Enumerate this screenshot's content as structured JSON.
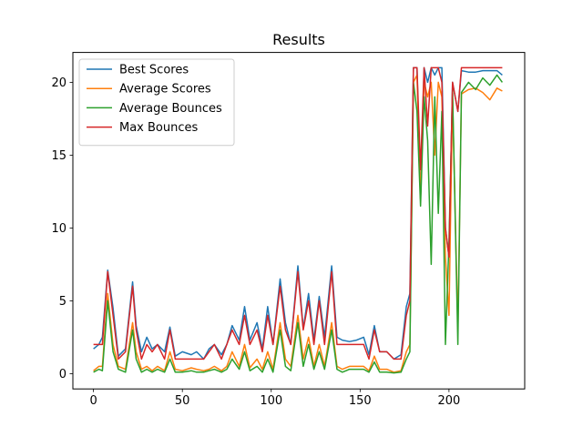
{
  "chart_data": {
    "type": "line",
    "title": "Results",
    "xlabel": "",
    "ylabel": "",
    "xlim": [
      -11.6,
      242.6
    ],
    "ylim": [
      -1.05,
      22.05
    ],
    "x_ticks": [
      0,
      50,
      100,
      150,
      200
    ],
    "y_ticks": [
      0,
      5,
      10,
      15,
      20
    ],
    "grid": false,
    "legend_position": "upper-left",
    "series": [
      {
        "name": "Best Scores",
        "color": "#1f77b4",
        "points": [
          [
            0,
            1.7
          ],
          [
            3,
            2
          ],
          [
            5,
            2.5
          ],
          [
            8,
            7.1
          ],
          [
            11,
            4.5
          ],
          [
            14,
            1.2
          ],
          [
            18,
            1.7
          ],
          [
            22,
            6.3
          ],
          [
            24,
            3.3
          ],
          [
            27,
            1.5
          ],
          [
            30,
            2.5
          ],
          [
            33,
            1.7
          ],
          [
            36,
            2
          ],
          [
            40,
            1.5
          ],
          [
            43,
            3.2
          ],
          [
            46,
            1.2
          ],
          [
            50,
            1.5
          ],
          [
            55,
            1.3
          ],
          [
            58,
            1.5
          ],
          [
            62,
            1
          ],
          [
            65,
            1.7
          ],
          [
            68,
            2
          ],
          [
            72,
            1.3
          ],
          [
            75,
            2
          ],
          [
            78,
            3.3
          ],
          [
            82,
            2.3
          ],
          [
            85,
            4.6
          ],
          [
            88,
            2.3
          ],
          [
            92,
            3.5
          ],
          [
            95,
            1.7
          ],
          [
            98,
            4.6
          ],
          [
            101,
            2
          ],
          [
            105,
            6.5
          ],
          [
            108,
            3.5
          ],
          [
            111,
            2
          ],
          [
            115,
            7.4
          ],
          [
            118,
            3.1
          ],
          [
            121,
            5.5
          ],
          [
            124,
            2.3
          ],
          [
            127,
            5.3
          ],
          [
            130,
            2.5
          ],
          [
            134,
            7.4
          ],
          [
            137,
            2.5
          ],
          [
            140,
            2.3
          ],
          [
            144,
            2.2
          ],
          [
            148,
            2.3
          ],
          [
            152,
            2.5
          ],
          [
            155,
            1.3
          ],
          [
            158,
            3.3
          ],
          [
            161,
            1.5
          ],
          [
            165,
            1.5
          ],
          [
            169,
            1
          ],
          [
            173,
            1.3
          ],
          [
            176,
            4.6
          ],
          [
            178,
            5.5
          ],
          [
            180,
            21
          ],
          [
            182,
            21
          ],
          [
            184,
            12
          ],
          [
            186,
            21
          ],
          [
            188,
            20
          ],
          [
            190,
            21
          ],
          [
            192,
            20.5
          ],
          [
            194,
            21
          ],
          [
            196,
            21
          ],
          [
            198,
            10
          ],
          [
            200,
            8
          ],
          [
            202,
            20
          ],
          [
            205,
            18
          ],
          [
            207,
            20.8
          ],
          [
            211,
            20.7
          ],
          [
            215,
            20.7
          ],
          [
            219,
            20.8
          ],
          [
            223,
            20.8
          ],
          [
            227,
            20.8
          ],
          [
            230,
            20.5
          ]
        ]
      },
      {
        "name": "Average Scores",
        "color": "#ff7f0e",
        "points": [
          [
            0,
            0.2
          ],
          [
            3,
            0.5
          ],
          [
            5,
            0.5
          ],
          [
            8,
            5.5
          ],
          [
            11,
            2
          ],
          [
            14,
            0.5
          ],
          [
            18,
            0.3
          ],
          [
            22,
            3.5
          ],
          [
            24,
            1.5
          ],
          [
            27,
            0.3
          ],
          [
            30,
            0.5
          ],
          [
            33,
            0.2
          ],
          [
            36,
            0.5
          ],
          [
            40,
            0.2
          ],
          [
            43,
            1.5
          ],
          [
            46,
            0.3
          ],
          [
            50,
            0.2
          ],
          [
            55,
            0.4
          ],
          [
            58,
            0.3
          ],
          [
            62,
            0.2
          ],
          [
            65,
            0.3
          ],
          [
            68,
            0.5
          ],
          [
            72,
            0.2
          ],
          [
            75,
            0.5
          ],
          [
            78,
            1.5
          ],
          [
            82,
            0.5
          ],
          [
            85,
            2
          ],
          [
            88,
            0.4
          ],
          [
            92,
            1
          ],
          [
            95,
            0.3
          ],
          [
            98,
            1.5
          ],
          [
            101,
            0.3
          ],
          [
            105,
            3.5
          ],
          [
            108,
            1
          ],
          [
            111,
            0.5
          ],
          [
            115,
            4
          ],
          [
            118,
            1
          ],
          [
            121,
            2.5
          ],
          [
            124,
            0.5
          ],
          [
            127,
            2
          ],
          [
            130,
            0.5
          ],
          [
            134,
            3.5
          ],
          [
            137,
            0.5
          ],
          [
            140,
            0.3
          ],
          [
            144,
            0.5
          ],
          [
            148,
            0.5
          ],
          [
            152,
            0.5
          ],
          [
            155,
            0.2
          ],
          [
            158,
            1.2
          ],
          [
            161,
            0.3
          ],
          [
            165,
            0.3
          ],
          [
            169,
            0.1
          ],
          [
            173,
            0.2
          ],
          [
            176,
            1.5
          ],
          [
            178,
            2
          ],
          [
            180,
            20
          ],
          [
            182,
            20.5
          ],
          [
            184,
            12
          ],
          [
            186,
            20
          ],
          [
            188,
            19
          ],
          [
            190,
            20
          ],
          [
            192,
            15
          ],
          [
            194,
            20
          ],
          [
            196,
            19
          ],
          [
            198,
            8
          ],
          [
            200,
            4
          ],
          [
            202,
            19
          ],
          [
            205,
            3
          ],
          [
            207,
            19.2
          ],
          [
            211,
            19.5
          ],
          [
            215,
            19.6
          ],
          [
            219,
            19.3
          ],
          [
            223,
            18.8
          ],
          [
            227,
            19.6
          ],
          [
            230,
            19.4
          ]
        ]
      },
      {
        "name": "Average Bounces",
        "color": "#2ca02c",
        "points": [
          [
            0,
            0.1
          ],
          [
            3,
            0.3
          ],
          [
            5,
            0.2
          ],
          [
            8,
            5
          ],
          [
            11,
            1.5
          ],
          [
            14,
            0.3
          ],
          [
            18,
            0.1
          ],
          [
            22,
            3
          ],
          [
            24,
            1
          ],
          [
            27,
            0.1
          ],
          [
            30,
            0.3
          ],
          [
            33,
            0.1
          ],
          [
            36,
            0.3
          ],
          [
            40,
            0.1
          ],
          [
            43,
            1
          ],
          [
            46,
            0.1
          ],
          [
            50,
            0.1
          ],
          [
            55,
            0.2
          ],
          [
            58,
            0.1
          ],
          [
            62,
            0.1
          ],
          [
            65,
            0.2
          ],
          [
            68,
            0.3
          ],
          [
            72,
            0.1
          ],
          [
            75,
            0.3
          ],
          [
            78,
            1
          ],
          [
            82,
            0.3
          ],
          [
            85,
            1.5
          ],
          [
            88,
            0.2
          ],
          [
            92,
            0.5
          ],
          [
            95,
            0.1
          ],
          [
            98,
            1
          ],
          [
            101,
            0.1
          ],
          [
            105,
            3
          ],
          [
            108,
            0.5
          ],
          [
            111,
            0.2
          ],
          [
            115,
            3.5
          ],
          [
            118,
            0.5
          ],
          [
            121,
            2
          ],
          [
            124,
            0.3
          ],
          [
            127,
            1.5
          ],
          [
            130,
            0.3
          ],
          [
            134,
            3
          ],
          [
            137,
            0.3
          ],
          [
            140,
            0.1
          ],
          [
            144,
            0.3
          ],
          [
            148,
            0.3
          ],
          [
            152,
            0.3
          ],
          [
            155,
            0.1
          ],
          [
            158,
            0.8
          ],
          [
            161,
            0.1
          ],
          [
            165,
            0.1
          ],
          [
            169,
            0.05
          ],
          [
            173,
            0.1
          ],
          [
            176,
            1
          ],
          [
            178,
            1.5
          ],
          [
            180,
            20
          ],
          [
            182,
            18
          ],
          [
            184,
            11.5
          ],
          [
            186,
            19
          ],
          [
            188,
            16
          ],
          [
            190,
            7.5
          ],
          [
            192,
            19
          ],
          [
            194,
            11
          ],
          [
            196,
            18
          ],
          [
            198,
            2
          ],
          [
            200,
            9
          ],
          [
            202,
            19.5
          ],
          [
            205,
            2
          ],
          [
            207,
            19.3
          ],
          [
            211,
            20
          ],
          [
            215,
            19.5
          ],
          [
            219,
            20.3
          ],
          [
            223,
            19.8
          ],
          [
            227,
            20.5
          ],
          [
            230,
            20
          ]
        ]
      },
      {
        "name": "Max Bounces",
        "color": "#d62728",
        "points": [
          [
            0,
            2
          ],
          [
            3,
            2
          ],
          [
            5,
            2
          ],
          [
            8,
            7
          ],
          [
            11,
            4
          ],
          [
            14,
            1
          ],
          [
            18,
            1.5
          ],
          [
            22,
            6
          ],
          [
            24,
            3
          ],
          [
            27,
            1
          ],
          [
            30,
            2
          ],
          [
            33,
            1.5
          ],
          [
            36,
            2
          ],
          [
            40,
            1
          ],
          [
            43,
            3
          ],
          [
            46,
            1
          ],
          [
            50,
            1
          ],
          [
            55,
            1
          ],
          [
            58,
            1
          ],
          [
            62,
            1
          ],
          [
            65,
            1.5
          ],
          [
            68,
            2
          ],
          [
            72,
            1
          ],
          [
            75,
            2
          ],
          [
            78,
            3
          ],
          [
            82,
            2
          ],
          [
            85,
            4
          ],
          [
            88,
            2
          ],
          [
            92,
            3
          ],
          [
            95,
            1.5
          ],
          [
            98,
            4
          ],
          [
            101,
            2
          ],
          [
            105,
            6
          ],
          [
            108,
            3
          ],
          [
            111,
            2
          ],
          [
            115,
            7
          ],
          [
            118,
            3
          ],
          [
            121,
            5
          ],
          [
            124,
            2
          ],
          [
            127,
            5
          ],
          [
            130,
            2
          ],
          [
            134,
            7
          ],
          [
            137,
            2
          ],
          [
            140,
            2
          ],
          [
            144,
            2
          ],
          [
            148,
            2
          ],
          [
            152,
            2
          ],
          [
            155,
            1
          ],
          [
            158,
            3
          ],
          [
            161,
            1.5
          ],
          [
            165,
            1.5
          ],
          [
            169,
            1
          ],
          [
            173,
            1
          ],
          [
            176,
            4
          ],
          [
            178,
            5
          ],
          [
            180,
            21
          ],
          [
            182,
            21
          ],
          [
            184,
            14
          ],
          [
            186,
            21
          ],
          [
            188,
            17
          ],
          [
            190,
            21
          ],
          [
            192,
            21
          ],
          [
            194,
            21
          ],
          [
            196,
            20
          ],
          [
            198,
            10
          ],
          [
            200,
            8
          ],
          [
            202,
            20
          ],
          [
            205,
            18
          ],
          [
            207,
            21
          ],
          [
            211,
            21
          ],
          [
            215,
            21
          ],
          [
            219,
            21
          ],
          [
            223,
            21
          ],
          [
            227,
            21
          ],
          [
            230,
            21
          ]
        ]
      }
    ]
  }
}
